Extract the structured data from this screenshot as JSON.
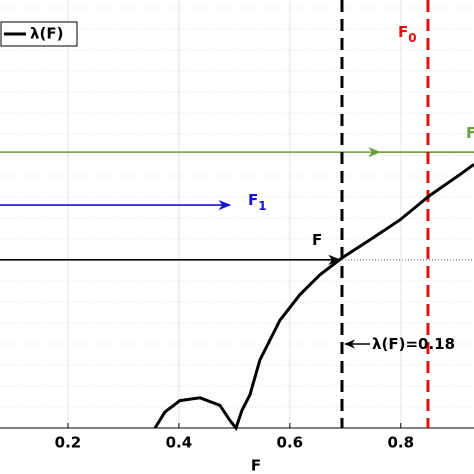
{
  "chart_data": {
    "type": "line",
    "xlabel": "F",
    "x": [
      0.357,
      0.375,
      0.402,
      0.438,
      0.474,
      0.492,
      0.503,
      0.514,
      0.528,
      0.546,
      0.582,
      0.618,
      0.654,
      0.694,
      0.744,
      0.798,
      0.852,
      0.906,
      0.932
    ],
    "series": [
      {
        "name": "λ(F)",
        "color": "#000000",
        "values": [
          0,
          0.017,
          0.029,
          0.032,
          0.024,
          0.008,
          0,
          0.019,
          0.035,
          0.072,
          0.114,
          0.141,
          0.162,
          0.18,
          0.199,
          0.22,
          0.246,
          0.268,
          0.279
        ]
      }
    ],
    "xlim": [
      0.0775,
      0.932
    ],
    "ylim": [
      0,
      0.453
    ],
    "xticks": [
      0.2,
      0.4,
      0.6,
      0.8
    ],
    "grid": true,
    "legend": "upper left",
    "vlines": [
      {
        "x": 0.694,
        "color": "#000000"
      },
      {
        "x": 0.849,
        "color": "#e01010"
      }
    ],
    "arrows": [
      {
        "y": 0.292,
        "head": 0.762,
        "color": "#6aa03a"
      },
      {
        "y": 0.236,
        "head": 0.492,
        "color": "#1414d0"
      },
      {
        "y": 0.178,
        "head": 0.69,
        "color": "#000000"
      }
    ],
    "annotations": [
      {
        "text": "F",
        "sub": "1",
        "color": "#1414d0"
      },
      {
        "text": "F",
        "color": "#000000"
      },
      {
        "text": "F",
        "sub": "0",
        "color": "#e01010"
      },
      {
        "text": "F",
        "color": "#6aa03a"
      },
      {
        "text": "λ(F)=0.18",
        "color": "#000000"
      }
    ]
  }
}
